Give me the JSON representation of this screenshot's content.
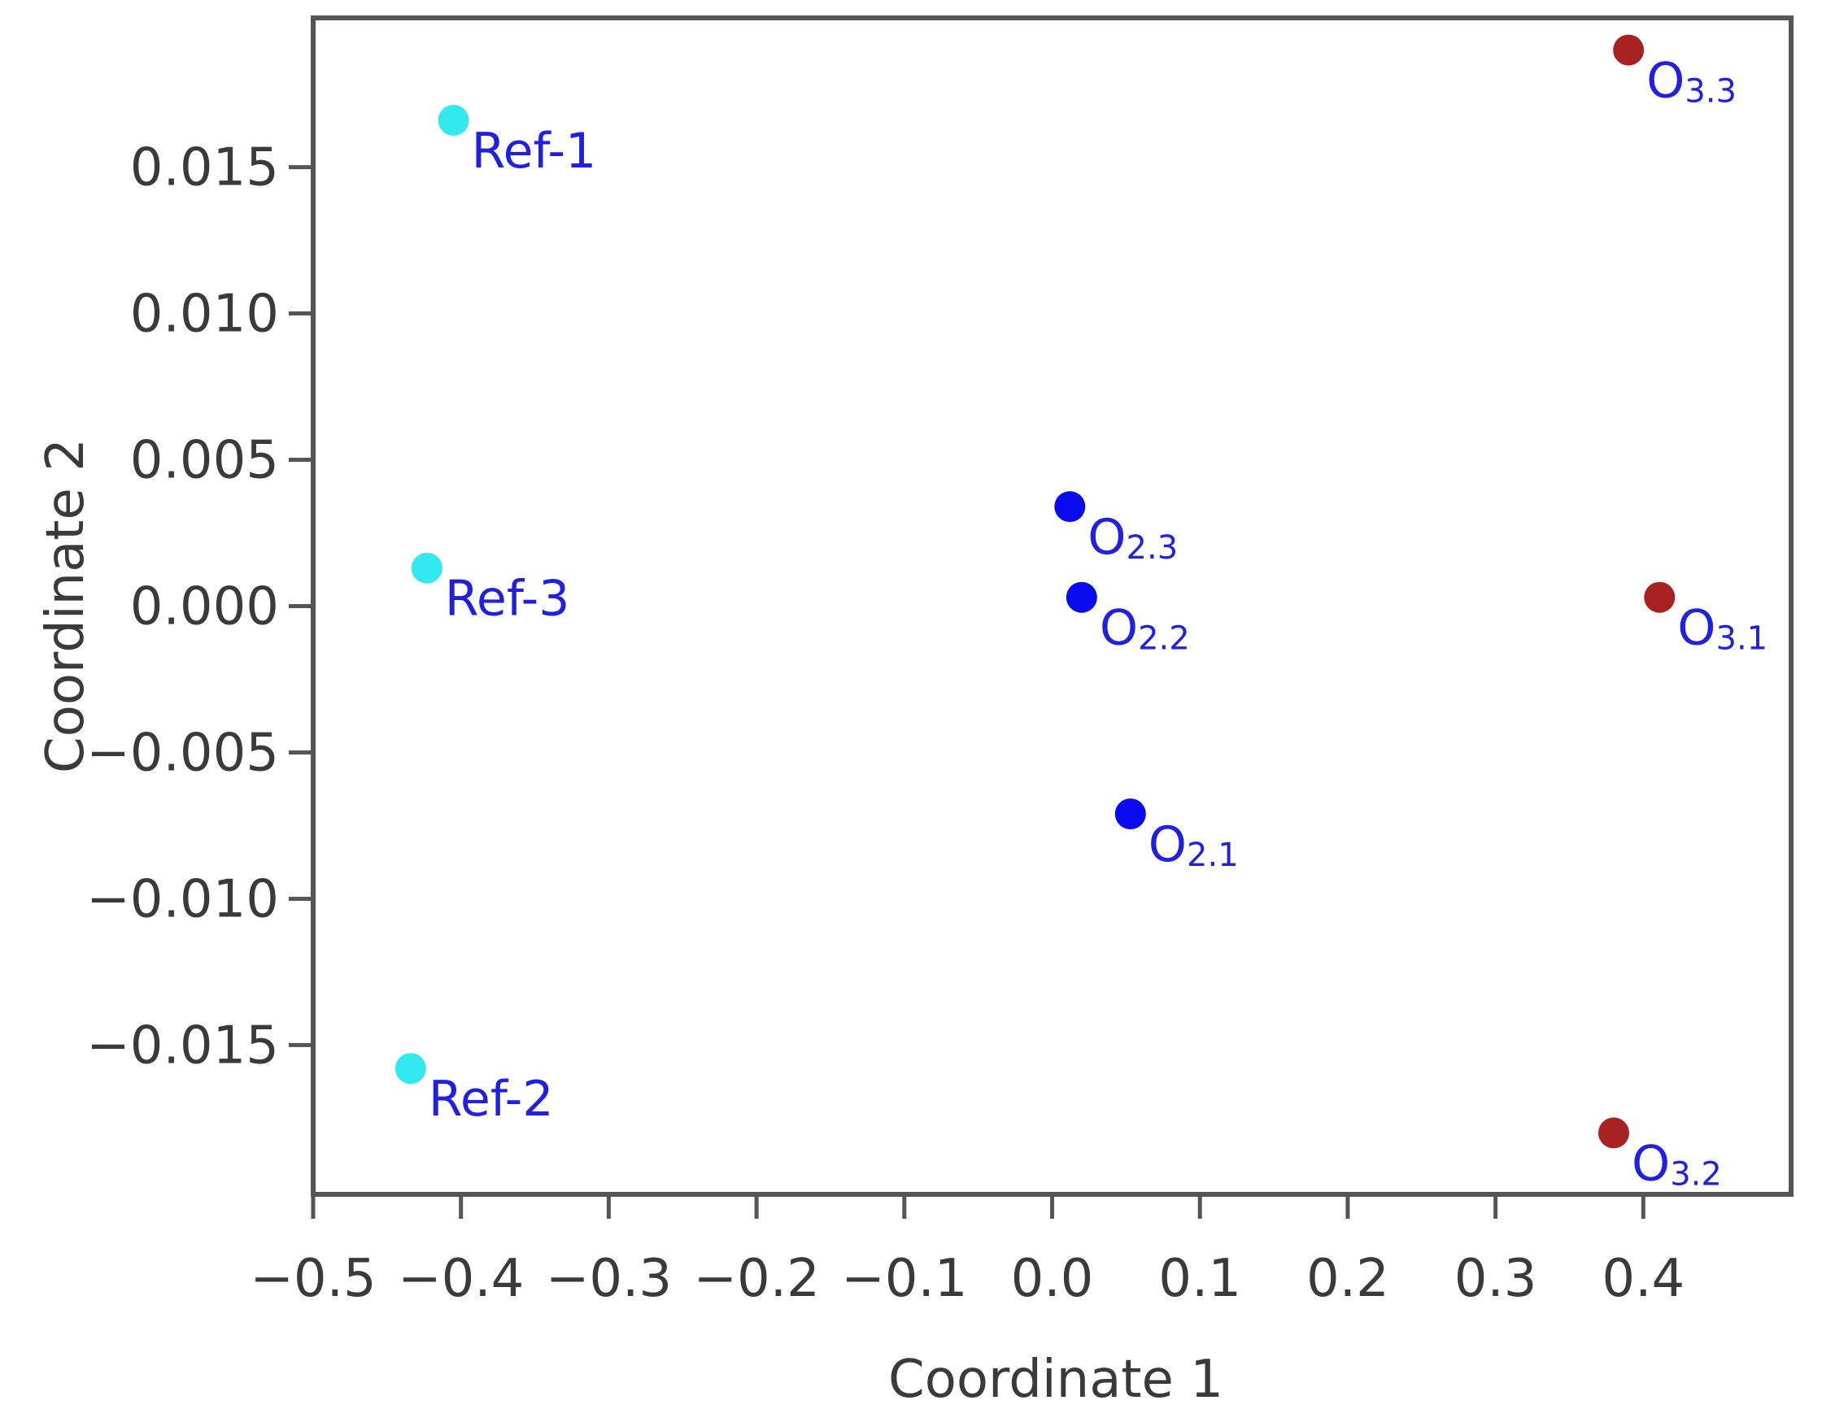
{
  "chart_data": {
    "type": "scatter",
    "title": "",
    "xlabel": "Coordinate 1",
    "ylabel": "Coordinate 2",
    "xlim": [
      -0.5,
      0.5
    ],
    "ylim": [
      -0.0201,
      0.0201
    ],
    "xticks": [
      -0.5,
      -0.4,
      -0.3,
      -0.2,
      -0.1,
      0.0,
      0.1,
      0.2,
      0.3,
      0.4
    ],
    "xtick_labels": [
      "−0.5",
      "−0.4",
      "−0.3",
      "−0.2",
      "−0.1",
      "0.0",
      "0.1",
      "0.2",
      "0.3",
      "0.4"
    ],
    "yticks": [
      0.015,
      0.01,
      0.005,
      0.0,
      -0.005,
      -0.01,
      -0.015
    ],
    "ytick_labels": [
      "0.015",
      "0.010",
      "0.005",
      "0.000",
      "−0.005",
      "−0.010",
      "−0.015"
    ],
    "grid": false,
    "legend": "none",
    "points": [
      {
        "label": "Ref-1",
        "base": "Ref-1",
        "sub": "",
        "x": -0.405,
        "y": 0.0166,
        "color": "#33e8ee"
      },
      {
        "label": "Ref-3",
        "base": "Ref-3",
        "sub": "",
        "x": -0.423,
        "y": 0.0013,
        "color": "#33e8ee"
      },
      {
        "label": "Ref-2",
        "base": "Ref-2",
        "sub": "",
        "x": -0.434,
        "y": -0.0158,
        "color": "#33e8ee"
      },
      {
        "label": "O2.3",
        "base": "O",
        "sub": "2.3",
        "x": 0.012,
        "y": 0.0034,
        "color": "#0a0aee"
      },
      {
        "label": "O2.2",
        "base": "O",
        "sub": "2.2",
        "x": 0.02,
        "y": 0.0003,
        "color": "#0a0aee"
      },
      {
        "label": "O2.1",
        "base": "O",
        "sub": "2.1",
        "x": 0.053,
        "y": -0.0071,
        "color": "#0a0aee"
      },
      {
        "label": "O3.3",
        "base": "O",
        "sub": "3.3",
        "x": 0.39,
        "y": 0.019,
        "color": "#a82222"
      },
      {
        "label": "O3.1",
        "base": "O",
        "sub": "3.1",
        "x": 0.411,
        "y": 0.0003,
        "color": "#a82222"
      },
      {
        "label": "O3.2",
        "base": "O",
        "sub": "3.2",
        "x": 0.38,
        "y": -0.018,
        "color": "#a82222"
      }
    ]
  }
}
